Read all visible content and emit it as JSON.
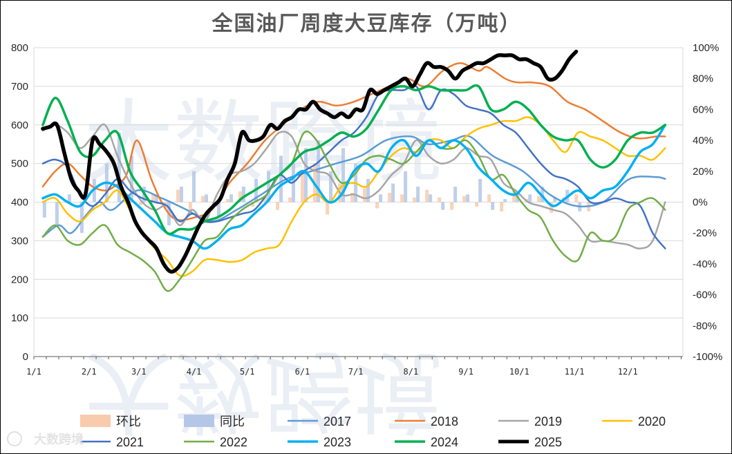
{
  "chart_data": {
    "type": "line",
    "title": "全国油厂周度大豆库存（万吨）",
    "xlabel": "",
    "ylabel": "",
    "x_ticks": [
      "1/1",
      "2/1",
      "3/1",
      "4/1",
      "5/1",
      "6/1",
      "7/1",
      "8/1",
      "9/1",
      "10/1",
      "11/1",
      "12/1"
    ],
    "y_ticks": [
      "0",
      "100",
      "200",
      "300",
      "400",
      "500",
      "600",
      "700",
      "800"
    ],
    "y2_ticks": [
      "-100%",
      "-80%",
      "-60%",
      "-40%",
      "-20%",
      "0%",
      "20%",
      "40%",
      "60%",
      "80%",
      "100%"
    ],
    "ylim": [
      0,
      800
    ],
    "y2lim": [
      -100,
      100
    ],
    "grid": "horizontal",
    "legend_position": "bottom",
    "watermark": "大数跨境",
    "credit": "大数跨境",
    "series": [
      {
        "name": "环比",
        "type": "bar",
        "axis": "right",
        "color": "#f8cbad",
        "x": [
          54,
          61,
          68,
          75,
          82,
          89,
          96,
          103,
          110,
          117,
          124,
          131,
          138,
          145,
          152,
          159,
          166,
          173,
          180,
          187,
          194,
          201,
          208,
          215,
          222,
          229,
          236,
          243,
          250,
          257,
          264,
          271,
          278,
          285,
          292,
          299,
          306,
          313
        ],
        "values": [
          3,
          -2,
          5,
          -4,
          8,
          -6,
          4,
          -3,
          2,
          7,
          -3,
          4,
          -5,
          3,
          18,
          25,
          -8,
          12,
          6,
          9,
          -4,
          6,
          5,
          3,
          8,
          3,
          -5,
          4,
          -3,
          5,
          -6,
          7,
          2,
          4,
          -7,
          3,
          5,
          -6
        ]
      },
      {
        "name": "同比",
        "type": "bar",
        "axis": "right",
        "color": "#b4c7e7",
        "x": [
          5,
          12,
          19,
          26,
          33,
          40,
          47,
          54,
          61,
          68,
          75,
          82,
          89,
          96,
          103,
          110,
          117,
          124,
          131,
          138,
          145,
          152,
          159,
          166,
          173,
          180,
          187,
          194,
          201,
          208,
          215,
          222,
          229,
          236,
          243,
          250,
          257,
          264,
          271,
          278,
          285,
          292,
          299,
          306
        ],
        "values": [
          -10,
          -15,
          5,
          -20,
          15,
          25,
          45,
          30,
          10,
          5,
          -15,
          10,
          20,
          5,
          -10,
          5,
          10,
          15,
          20,
          30,
          25,
          35,
          40,
          20,
          35,
          25,
          15,
          5,
          12,
          20,
          10,
          5,
          -5,
          10,
          5,
          15,
          -5,
          2,
          7,
          5,
          10,
          3,
          8,
          -6
        ]
      },
      {
        "name": "2017",
        "color": "#5b9bd5",
        "width": 2.5,
        "x": [
          5,
          14,
          21,
          30,
          37,
          44,
          58,
          72,
          86,
          100,
          114,
          128,
          142,
          156,
          170,
          184,
          198,
          212,
          222,
          235,
          245,
          258,
          275,
          290,
          305,
          320,
          335,
          350,
          355
        ],
        "y": [
          310,
          340,
          320,
          370,
          400,
          380,
          430,
          410,
          380,
          350,
          380,
          420,
          460,
          480,
          500,
          520,
          560,
          570,
          550,
          560,
          570,
          520,
          480,
          420,
          390,
          400,
          460,
          465,
          460
        ]
      },
      {
        "name": "2018",
        "color": "#ed7d31",
        "width": 2.5,
        "x": [
          5,
          12,
          19,
          26,
          33,
          40,
          45,
          52,
          58,
          66,
          73,
          80,
          90,
          100,
          110,
          120,
          130,
          140,
          150,
          160,
          170,
          180,
          190,
          200,
          210,
          220,
          230,
          240,
          250,
          255,
          265,
          272,
          280,
          290,
          300,
          310,
          320,
          330,
          340,
          350,
          355
        ],
        "y": [
          440,
          480,
          500,
          470,
          440,
          430,
          440,
          470,
          560,
          460,
          390,
          355,
          360,
          380,
          450,
          500,
          560,
          600,
          640,
          660,
          650,
          660,
          680,
          700,
          720,
          700,
          740,
          760,
          740,
          750,
          720,
          710,
          710,
          700,
          660,
          640,
          610,
          580,
          565,
          570,
          570
        ]
      },
      {
        "name": "2019",
        "color": "#a5a5a5",
        "width": 2.5,
        "x": [
          5,
          12,
          19,
          26,
          33,
          40,
          47,
          54,
          61,
          68,
          75,
          82,
          89,
          96,
          103,
          110,
          117,
          124,
          131,
          138,
          145,
          152,
          159,
          166,
          173,
          180,
          187,
          194,
          201,
          208,
          215,
          222,
          229,
          236,
          243,
          250,
          257,
          264,
          271,
          278,
          285,
          292,
          299,
          306,
          313,
          320,
          327,
          334,
          341,
          348,
          355
        ],
        "y": [
          585,
          600,
          580,
          540,
          570,
          600,
          520,
          450,
          400,
          380,
          390,
          340,
          380,
          350,
          420,
          470,
          480,
          500,
          540,
          580,
          570,
          500,
          480,
          470,
          420,
          420,
          410,
          430,
          470,
          500,
          560,
          520,
          500,
          510,
          540,
          520,
          510,
          450,
          430,
          400,
          390,
          380,
          370,
          340,
          300,
          300,
          295,
          290,
          280,
          300,
          400
        ]
      },
      {
        "name": "2020",
        "color": "#ffc000",
        "width": 2.5,
        "x": [
          5,
          12,
          19,
          26,
          33,
          40,
          47,
          54,
          61,
          68,
          75,
          82,
          89,
          96,
          103,
          110,
          117,
          124,
          131,
          138,
          145,
          152,
          159,
          166,
          173,
          180,
          187,
          194,
          201,
          208,
          215,
          222,
          229,
          236,
          243,
          250,
          257,
          264,
          271,
          278,
          285,
          292,
          299,
          306,
          313,
          320,
          327,
          334,
          341,
          348,
          355
        ],
        "y": [
          400,
          410,
          370,
          350,
          380,
          400,
          430,
          380,
          320,
          280,
          250,
          210,
          220,
          250,
          250,
          245,
          250,
          270,
          280,
          290,
          350,
          400,
          420,
          400,
          440,
          450,
          440,
          480,
          520,
          540,
          530,
          560,
          560,
          540,
          570,
          590,
          600,
          610,
          610,
          620,
          600,
          560,
          530,
          580,
          570,
          560,
          540,
          520,
          520,
          510,
          540
        ]
      },
      {
        "name": "2021",
        "color": "#4472c4",
        "width": 2.5,
        "x": [
          5,
          12,
          19,
          26,
          33,
          40,
          47,
          54,
          61,
          68,
          75,
          82,
          89,
          96,
          103,
          110,
          117,
          124,
          131,
          138,
          145,
          152,
          159,
          166,
          173,
          180,
          187,
          194,
          201,
          208,
          215,
          222,
          229,
          236,
          243,
          250,
          257,
          264,
          271,
          278,
          285,
          292,
          299,
          306,
          313,
          320,
          327,
          334,
          341,
          348,
          355
        ],
        "y": [
          500,
          510,
          490,
          420,
          390,
          420,
          460,
          430,
          410,
          400,
          390,
          350,
          370,
          350,
          350,
          360,
          370,
          380,
          420,
          470,
          450,
          480,
          500,
          530,
          560,
          580,
          620,
          680,
          690,
          690,
          700,
          640,
          690,
          680,
          650,
          640,
          630,
          600,
          580,
          540,
          500,
          470,
          460,
          440,
          400,
          400,
          410,
          400,
          390,
          320,
          280
        ]
      },
      {
        "name": "2022",
        "color": "#70ad47",
        "width": 2.5,
        "x": [
          5,
          12,
          19,
          26,
          33,
          40,
          47,
          54,
          61,
          68,
          75,
          82,
          89,
          96,
          103,
          110,
          117,
          124,
          131,
          138,
          145,
          152,
          159,
          166,
          173,
          180,
          187,
          194,
          201,
          208,
          215,
          222,
          229,
          236,
          243,
          250,
          257,
          264,
          271,
          278,
          285,
          292,
          299,
          306,
          313,
          320,
          327,
          334,
          341,
          348,
          355
        ],
        "y": [
          310,
          340,
          300,
          290,
          320,
          340,
          290,
          270,
          250,
          220,
          170,
          200,
          250,
          300,
          310,
          350,
          380,
          400,
          420,
          470,
          500,
          580,
          560,
          500,
          450,
          470,
          510,
          520,
          510,
          500,
          530,
          560,
          540,
          540,
          560,
          520,
          460,
          470,
          420,
          380,
          360,
          300,
          260,
          250,
          320,
          300,
          310,
          380,
          400,
          410,
          380
        ]
      },
      {
        "name": "2023",
        "color": "#00b0f0",
        "width": 3.5,
        "x": [
          5,
          12,
          19,
          26,
          33,
          40,
          47,
          54,
          61,
          68,
          75,
          82,
          89,
          96,
          103,
          110,
          117,
          124,
          131,
          138,
          145,
          152,
          159,
          166,
          173,
          180,
          187,
          194,
          201,
          208,
          215,
          222,
          229,
          236,
          243,
          250,
          257,
          264,
          271,
          278,
          285,
          292,
          299,
          306,
          313,
          320,
          327,
          334,
          341,
          348,
          355
        ],
        "y": [
          410,
          420,
          400,
          390,
          430,
          450,
          440,
          410,
          380,
          350,
          320,
          310,
          300,
          280,
          300,
          330,
          340,
          370,
          400,
          440,
          460,
          480,
          440,
          400,
          420,
          480,
          500,
          480,
          540,
          560,
          520,
          560,
          540,
          560,
          540,
          490,
          460,
          430,
          420,
          450,
          420,
          390,
          410,
          430,
          410,
          430,
          440,
          480,
          530,
          550,
          600
        ]
      },
      {
        "name": "2024",
        "color": "#00b050",
        "width": 3.5,
        "x": [
          5,
          12,
          19,
          26,
          33,
          40,
          47,
          54,
          61,
          68,
          75,
          82,
          89,
          96,
          103,
          110,
          117,
          124,
          131,
          138,
          145,
          152,
          159,
          166,
          173,
          180,
          187,
          194,
          201,
          208,
          215,
          222,
          229,
          236,
          243,
          250,
          257,
          264,
          271,
          278,
          285,
          292,
          299,
          306,
          313,
          320,
          327,
          334,
          341,
          348,
          355
        ],
        "y": [
          600,
          670,
          610,
          530,
          520,
          560,
          580,
          480,
          430,
          380,
          320,
          330,
          330,
          350,
          360,
          380,
          410,
          430,
          450,
          470,
          500,
          530,
          540,
          560,
          580,
          570,
          590,
          640,
          690,
          700,
          690,
          700,
          690,
          690,
          690,
          700,
          640,
          640,
          660,
          640,
          600,
          570,
          560,
          560,
          510,
          490,
          510,
          560,
          580,
          580,
          600
        ]
      },
      {
        "name": "2025",
        "color": "#000000",
        "width": 5.5,
        "x": [
          5,
          9,
          13,
          17,
          21,
          25,
          29,
          33,
          37,
          41,
          45,
          49,
          53,
          57,
          61,
          65,
          69,
          73,
          77,
          81,
          85,
          89,
          93,
          97,
          101,
          105,
          109,
          113,
          117,
          121,
          125,
          129,
          133,
          137,
          141,
          145,
          149,
          153,
          157,
          161,
          165,
          169,
          173,
          177,
          181,
          185,
          189,
          193,
          197,
          201,
          205,
          209,
          213,
          217,
          221,
          225,
          229,
          233,
          237,
          241,
          245,
          249,
          253,
          257,
          261,
          265,
          269,
          273,
          277,
          281,
          285,
          289,
          293,
          297,
          301,
          305
        ],
        "y": [
          590,
          595,
          600,
          530,
          460,
          430,
          420,
          560,
          550,
          530,
          500,
          440,
          400,
          350,
          320,
          300,
          280,
          240,
          220,
          230,
          260,
          300,
          340,
          370,
          390,
          410,
          460,
          500,
          580,
          560,
          560,
          570,
          600,
          590,
          610,
          620,
          640,
          640,
          660,
          640,
          630,
          620,
          630,
          620,
          640,
          640,
          690,
          680,
          690,
          700,
          710,
          720,
          700,
          730,
          760,
          750,
          750,
          740,
          720,
          740,
          750,
          760,
          760,
          770,
          780,
          780,
          780,
          770,
          770,
          760,
          750,
          720,
          720,
          740,
          770,
          790
        ]
      }
    ]
  }
}
